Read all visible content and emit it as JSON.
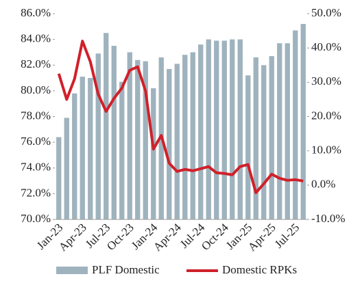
{
  "chart_data": {
    "type": "bar-line",
    "categories": [
      "Jan-23",
      null,
      null,
      "Apr-23",
      null,
      null,
      "Jul-23",
      null,
      null,
      "Oct-23",
      null,
      null,
      "Jan-24",
      null,
      null,
      "Apr-24",
      null,
      null,
      "Jul-24",
      null,
      null,
      "Oct-24",
      null,
      null,
      "Jan-25",
      null,
      null,
      "Apr-25",
      null,
      null,
      "Jul-25",
      null
    ],
    "series": [
      {
        "name": "PLF Domestic",
        "color": "#9fb3be",
        "values": [
          76.4,
          77.9,
          79.8,
          81.1,
          81.0,
          82.9,
          84.5,
          83.5,
          80.7,
          83.0,
          82.4,
          82.3,
          80.2,
          82.6,
          81.7,
          82.1,
          82.8,
          83.0,
          83.6,
          84.0,
          83.9,
          83.9,
          84.0,
          84.0,
          81.2,
          82.6,
          82.0,
          82.7,
          83.7,
          83.7,
          84.7,
          85.2
        ]
      },
      {
        "name": "Domestic RPKs",
        "color": "#d0202a",
        "axis": "y2",
        "values": [
          32.5,
          25,
          31,
          42,
          36,
          26.5,
          21.5,
          25.3,
          28.3,
          33.5,
          34.5,
          27.5,
          10.5,
          14.5,
          6.4,
          4,
          4.6,
          4.2,
          4.8,
          5.4,
          3.6,
          3.4,
          3,
          5.4,
          6,
          -2.2,
          0.4,
          3.2,
          2,
          1.4,
          1.6,
          1.2
        ]
      }
    ],
    "ylim": [
      70,
      86
    ],
    "yticks": [
      {
        "value": 70,
        "label": "70.0%"
      },
      {
        "value": 72,
        "label": "72.0%"
      },
      {
        "value": 74,
        "label": "74.0%"
      },
      {
        "value": 76,
        "label": "76.0%"
      },
      {
        "value": 78,
        "label": "78.0%"
      },
      {
        "value": 80,
        "label": "80.0%"
      },
      {
        "value": 82,
        "label": "82.0%"
      },
      {
        "value": 84,
        "label": "84.0%"
      },
      {
        "value": 86,
        "label": "86.0%"
      }
    ],
    "y2lim": [
      -10,
      50
    ],
    "y2ticks": [
      {
        "value": -10,
        "label": "-10.0%"
      },
      {
        "value": 0,
        "label": "0.0%"
      },
      {
        "value": 10,
        "label": "10.0%"
      },
      {
        "value": 20,
        "label": "20.0%"
      },
      {
        "value": 30,
        "label": "30.0%"
      },
      {
        "value": 40,
        "label": "40.0%"
      },
      {
        "value": 50,
        "label": "50.0%"
      }
    ]
  }
}
